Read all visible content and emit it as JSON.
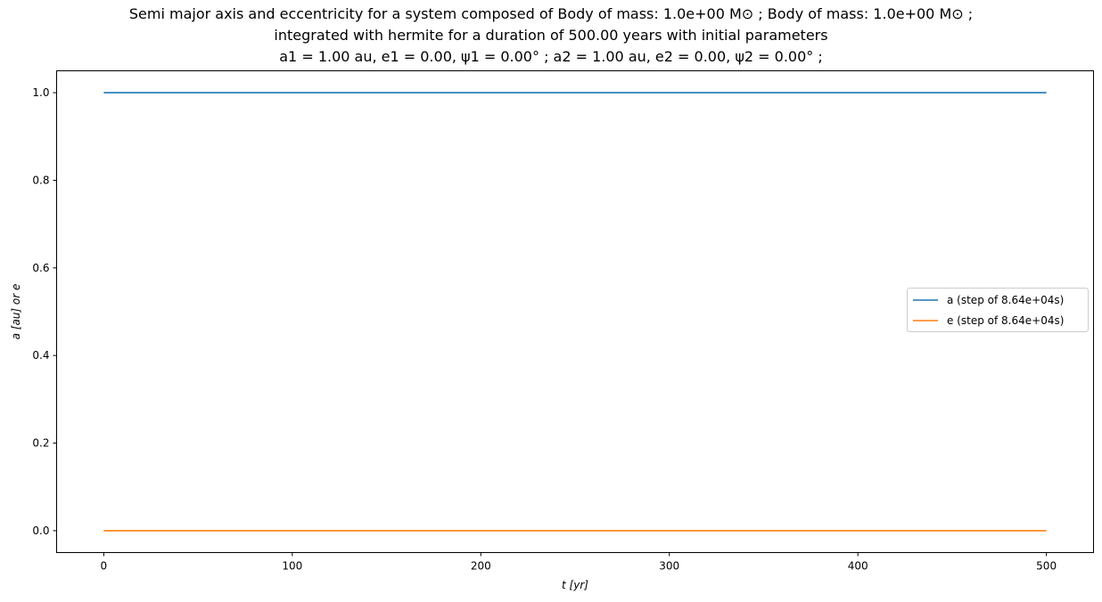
{
  "chart_data": {
    "type": "line",
    "title_lines": [
      "Semi major axis and eccentricity for a system composed of Body of mass: 1.0e+00 M⊙ ; Body of mass: 1.0e+00 M⊙ ;",
      "integrated with hermite for a duration of 500.00 years with initial parameters",
      "a1 = 1.00 au, e1 = 0.00, ψ1 = 0.00° ; a2 = 1.00 au, e2 = 0.00, ψ2 = 0.00° ;"
    ],
    "xlabel": "t [yr]",
    "ylabel": "a [au] or e",
    "xlim": [
      -25,
      525
    ],
    "ylim": [
      -0.05,
      1.05
    ],
    "xticks": [
      0,
      100,
      200,
      300,
      400,
      500
    ],
    "xtick_labels": [
      "0",
      "100",
      "200",
      "300",
      "400",
      "500"
    ],
    "yticks": [
      0.0,
      0.2,
      0.4,
      0.6,
      0.8,
      1.0
    ],
    "ytick_labels": [
      "0.0",
      "0.2",
      "0.4",
      "0.6",
      "0.8",
      "1.0"
    ],
    "grid": false,
    "legend_position": "center-right",
    "x": [
      0,
      100,
      200,
      300,
      400,
      500
    ],
    "series": [
      {
        "name": "a (step of 8.64e+04s)",
        "color": "#1f77b4",
        "values": [
          1.0,
          1.0,
          1.0,
          1.0,
          1.0,
          1.0
        ]
      },
      {
        "name": "e (step of 8.64e+04s)",
        "color": "#ff7f0e",
        "values": [
          0.0,
          0.0,
          0.0,
          0.0,
          0.0,
          0.0
        ]
      }
    ]
  }
}
